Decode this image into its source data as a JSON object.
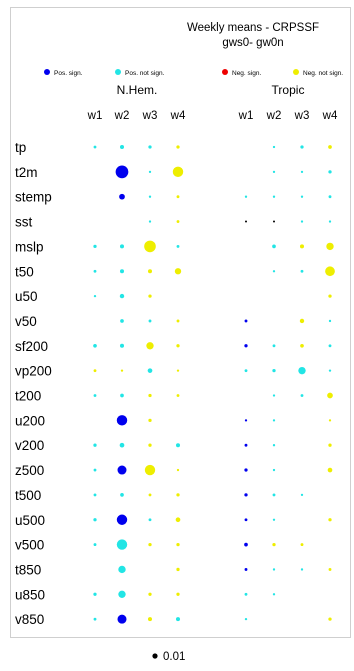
{
  "chart_data": {
    "type": "scatter",
    "title": "Weekly means - CRPSSF",
    "subtitle": "gws0- gw0n",
    "legend": [
      {
        "label": "Pos. sign.",
        "color": "#0000ee"
      },
      {
        "label": "Pos. not sign.",
        "color": "#22e5e5"
      },
      {
        "label": "Neg. sign.",
        "color": "#ee0000"
      },
      {
        "label": "Neg. not sign.",
        "color": "#eeee00"
      }
    ],
    "panels": [
      {
        "name": "N.Hem.",
        "weeks": [
          "w1",
          "w2",
          "w3",
          "w4"
        ]
      },
      {
        "name": "Tropic",
        "weeks": [
          "w1",
          "w2",
          "w3",
          "w4"
        ]
      }
    ],
    "variables": [
      "tp",
      "t2m",
      "stemp",
      "sst",
      "mslp",
      "t50",
      "u50",
      "v50",
      "sf200",
      "vp200",
      "t200",
      "u200",
      "v200",
      "z500",
      "t500",
      "u500",
      "v500",
      "t850",
      "u850",
      "v850"
    ],
    "category_colors": {
      "ps": "#0000ee",
      "pn": "#22e5e5",
      "ns": "#ee0000",
      "nn": "#eeee00",
      "k": "#000000"
    },
    "scale_label": "0.01",
    "scale_value": 0.01,
    "points": [
      {
        "var": "tp",
        "panel": 0,
        "week": 1,
        "cat": "pn",
        "size": 0.003
      },
      {
        "var": "tp",
        "panel": 0,
        "week": 2,
        "cat": "pn",
        "size": 0.006
      },
      {
        "var": "tp",
        "panel": 0,
        "week": 3,
        "cat": "pn",
        "size": 0.004
      },
      {
        "var": "tp",
        "panel": 0,
        "week": 4,
        "cat": "nn",
        "size": 0.004
      },
      {
        "var": "tp",
        "panel": 1,
        "week": 2,
        "cat": "pn",
        "size": 0.002
      },
      {
        "var": "tp",
        "panel": 1,
        "week": 3,
        "cat": "pn",
        "size": 0.004
      },
      {
        "var": "tp",
        "panel": 1,
        "week": 4,
        "cat": "nn",
        "size": 0.005
      },
      {
        "var": "t2m",
        "panel": 0,
        "week": 2,
        "cat": "ps",
        "size": 0.06
      },
      {
        "var": "t2m",
        "panel": 0,
        "week": 3,
        "cat": "pn",
        "size": 0.002
      },
      {
        "var": "t2m",
        "panel": 0,
        "week": 4,
        "cat": "nn",
        "size": 0.04
      },
      {
        "var": "t2m",
        "panel": 1,
        "week": 2,
        "cat": "pn",
        "size": 0.002
      },
      {
        "var": "t2m",
        "panel": 1,
        "week": 3,
        "cat": "pn",
        "size": 0.002
      },
      {
        "var": "t2m",
        "panel": 1,
        "week": 4,
        "cat": "pn",
        "size": 0.004
      },
      {
        "var": "stemp",
        "panel": 0,
        "week": 2,
        "cat": "ps",
        "size": 0.012
      },
      {
        "var": "stemp",
        "panel": 0,
        "week": 3,
        "cat": "pn",
        "size": 0.002
      },
      {
        "var": "stemp",
        "panel": 0,
        "week": 4,
        "cat": "nn",
        "size": 0.003
      },
      {
        "var": "stemp",
        "panel": 1,
        "week": 1,
        "cat": "pn",
        "size": 0.002
      },
      {
        "var": "stemp",
        "panel": 1,
        "week": 2,
        "cat": "pn",
        "size": 0.002
      },
      {
        "var": "stemp",
        "panel": 1,
        "week": 3,
        "cat": "pn",
        "size": 0.002
      },
      {
        "var": "stemp",
        "panel": 1,
        "week": 4,
        "cat": "pn",
        "size": 0.003
      },
      {
        "var": "sst",
        "panel": 0,
        "week": 3,
        "cat": "pn",
        "size": 0.002
      },
      {
        "var": "sst",
        "panel": 0,
        "week": 4,
        "cat": "nn",
        "size": 0.003
      },
      {
        "var": "sst",
        "panel": 1,
        "week": 1,
        "cat": "k",
        "size": 0.001
      },
      {
        "var": "sst",
        "panel": 1,
        "week": 2,
        "cat": "k",
        "size": 0.001
      },
      {
        "var": "sst",
        "panel": 1,
        "week": 3,
        "cat": "pn",
        "size": 0.002
      },
      {
        "var": "sst",
        "panel": 1,
        "week": 4,
        "cat": "pn",
        "size": 0.002
      },
      {
        "var": "mslp",
        "panel": 0,
        "week": 1,
        "cat": "pn",
        "size": 0.004
      },
      {
        "var": "mslp",
        "panel": 0,
        "week": 2,
        "cat": "pn",
        "size": 0.006
      },
      {
        "var": "mslp",
        "panel": 0,
        "week": 3,
        "cat": "nn",
        "size": 0.05
      },
      {
        "var": "mslp",
        "panel": 0,
        "week": 4,
        "cat": "pn",
        "size": 0.003
      },
      {
        "var": "mslp",
        "panel": 1,
        "week": 2,
        "cat": "pn",
        "size": 0.005
      },
      {
        "var": "mslp",
        "panel": 1,
        "week": 3,
        "cat": "nn",
        "size": 0.006
      },
      {
        "var": "mslp",
        "panel": 1,
        "week": 4,
        "cat": "nn",
        "size": 0.02
      },
      {
        "var": "t50",
        "panel": 0,
        "week": 1,
        "cat": "pn",
        "size": 0.003
      },
      {
        "var": "t50",
        "panel": 0,
        "week": 2,
        "cat": "pn",
        "size": 0.006
      },
      {
        "var": "t50",
        "panel": 0,
        "week": 3,
        "cat": "nn",
        "size": 0.006
      },
      {
        "var": "t50",
        "panel": 0,
        "week": 4,
        "cat": "nn",
        "size": 0.015
      },
      {
        "var": "t50",
        "panel": 1,
        "week": 2,
        "cat": "pn",
        "size": 0.002
      },
      {
        "var": "t50",
        "panel": 1,
        "week": 3,
        "cat": "pn",
        "size": 0.003
      },
      {
        "var": "t50",
        "panel": 1,
        "week": 4,
        "cat": "nn",
        "size": 0.035
      },
      {
        "var": "u50",
        "panel": 0,
        "week": 1,
        "cat": "pn",
        "size": 0.002
      },
      {
        "var": "u50",
        "panel": 0,
        "week": 2,
        "cat": "pn",
        "size": 0.007
      },
      {
        "var": "u50",
        "panel": 0,
        "week": 3,
        "cat": "nn",
        "size": 0.004
      },
      {
        "var": "u50",
        "panel": 1,
        "week": 4,
        "cat": "nn",
        "size": 0.004
      },
      {
        "var": "v50",
        "panel": 0,
        "week": 2,
        "cat": "pn",
        "size": 0.005
      },
      {
        "var": "v50",
        "panel": 0,
        "week": 3,
        "cat": "pn",
        "size": 0.003
      },
      {
        "var": "v50",
        "panel": 0,
        "week": 4,
        "cat": "nn",
        "size": 0.003
      },
      {
        "var": "v50",
        "panel": 1,
        "week": 1,
        "cat": "ps",
        "size": 0.003
      },
      {
        "var": "v50",
        "panel": 1,
        "week": 3,
        "cat": "nn",
        "size": 0.007
      },
      {
        "var": "v50",
        "panel": 1,
        "week": 4,
        "cat": "pn",
        "size": 0.002
      },
      {
        "var": "sf200",
        "panel": 0,
        "week": 1,
        "cat": "pn",
        "size": 0.005
      },
      {
        "var": "sf200",
        "panel": 0,
        "week": 2,
        "cat": "pn",
        "size": 0.006
      },
      {
        "var": "sf200",
        "panel": 0,
        "week": 3,
        "cat": "nn",
        "size": 0.02
      },
      {
        "var": "sf200",
        "panel": 0,
        "week": 4,
        "cat": "nn",
        "size": 0.004
      },
      {
        "var": "sf200",
        "panel": 1,
        "week": 1,
        "cat": "ps",
        "size": 0.004
      },
      {
        "var": "sf200",
        "panel": 1,
        "week": 2,
        "cat": "pn",
        "size": 0.003
      },
      {
        "var": "sf200",
        "panel": 1,
        "week": 3,
        "cat": "nn",
        "size": 0.005
      },
      {
        "var": "sf200",
        "panel": 1,
        "week": 4,
        "cat": "pn",
        "size": 0.003
      },
      {
        "var": "vp200",
        "panel": 0,
        "week": 1,
        "cat": "nn",
        "size": 0.003
      },
      {
        "var": "vp200",
        "panel": 0,
        "week": 2,
        "cat": "nn",
        "size": 0.002
      },
      {
        "var": "vp200",
        "panel": 0,
        "week": 3,
        "cat": "pn",
        "size": 0.008
      },
      {
        "var": "vp200",
        "panel": 0,
        "week": 4,
        "cat": "nn",
        "size": 0.002
      },
      {
        "var": "vp200",
        "panel": 1,
        "week": 1,
        "cat": "pn",
        "size": 0.003
      },
      {
        "var": "vp200",
        "panel": 1,
        "week": 2,
        "cat": "pn",
        "size": 0.004
      },
      {
        "var": "vp200",
        "panel": 1,
        "week": 3,
        "cat": "pn",
        "size": 0.02
      },
      {
        "var": "vp200",
        "panel": 1,
        "week": 4,
        "cat": "pn",
        "size": 0.002
      },
      {
        "var": "t200",
        "panel": 0,
        "week": 1,
        "cat": "pn",
        "size": 0.003
      },
      {
        "var": "t200",
        "panel": 0,
        "week": 2,
        "cat": "pn",
        "size": 0.005
      },
      {
        "var": "t200",
        "panel": 0,
        "week": 3,
        "cat": "nn",
        "size": 0.004
      },
      {
        "var": "t200",
        "panel": 0,
        "week": 4,
        "cat": "nn",
        "size": 0.003
      },
      {
        "var": "t200",
        "panel": 1,
        "week": 2,
        "cat": "pn",
        "size": 0.002
      },
      {
        "var": "t200",
        "panel": 1,
        "week": 3,
        "cat": "pn",
        "size": 0.003
      },
      {
        "var": "t200",
        "panel": 1,
        "week": 4,
        "cat": "nn",
        "size": 0.012
      },
      {
        "var": "u200",
        "panel": 0,
        "week": 2,
        "cat": "ps",
        "size": 0.04
      },
      {
        "var": "u200",
        "panel": 0,
        "week": 3,
        "cat": "nn",
        "size": 0.004
      },
      {
        "var": "u200",
        "panel": 1,
        "week": 1,
        "cat": "ps",
        "size": 0.002
      },
      {
        "var": "u200",
        "panel": 1,
        "week": 2,
        "cat": "pn",
        "size": 0.002
      },
      {
        "var": "u200",
        "panel": 1,
        "week": 4,
        "cat": "nn",
        "size": 0.002
      },
      {
        "var": "v200",
        "panel": 0,
        "week": 1,
        "cat": "pn",
        "size": 0.004
      },
      {
        "var": "v200",
        "panel": 0,
        "week": 2,
        "cat": "pn",
        "size": 0.008
      },
      {
        "var": "v200",
        "panel": 0,
        "week": 3,
        "cat": "nn",
        "size": 0.004
      },
      {
        "var": "v200",
        "panel": 0,
        "week": 4,
        "cat": "pn",
        "size": 0.006
      },
      {
        "var": "v200",
        "panel": 1,
        "week": 1,
        "cat": "ps",
        "size": 0.003
      },
      {
        "var": "v200",
        "panel": 1,
        "week": 2,
        "cat": "pn",
        "size": 0.002
      },
      {
        "var": "v200",
        "panel": 1,
        "week": 4,
        "cat": "nn",
        "size": 0.004
      },
      {
        "var": "z500",
        "panel": 0,
        "week": 1,
        "cat": "pn",
        "size": 0.003
      },
      {
        "var": "z500",
        "panel": 0,
        "week": 2,
        "cat": "ps",
        "size": 0.03
      },
      {
        "var": "z500",
        "panel": 0,
        "week": 3,
        "cat": "nn",
        "size": 0.04
      },
      {
        "var": "z500",
        "panel": 0,
        "week": 4,
        "cat": "nn",
        "size": 0.002
      },
      {
        "var": "z500",
        "panel": 1,
        "week": 1,
        "cat": "ps",
        "size": 0.004
      },
      {
        "var": "z500",
        "panel": 1,
        "week": 2,
        "cat": "pn",
        "size": 0.002
      },
      {
        "var": "z500",
        "panel": 1,
        "week": 4,
        "cat": "nn",
        "size": 0.008
      },
      {
        "var": "t500",
        "panel": 0,
        "week": 1,
        "cat": "pn",
        "size": 0.003
      },
      {
        "var": "t500",
        "panel": 0,
        "week": 2,
        "cat": "pn",
        "size": 0.005
      },
      {
        "var": "t500",
        "panel": 0,
        "week": 3,
        "cat": "nn",
        "size": 0.003
      },
      {
        "var": "t500",
        "panel": 0,
        "week": 4,
        "cat": "nn",
        "size": 0.004
      },
      {
        "var": "t500",
        "panel": 1,
        "week": 1,
        "cat": "ps",
        "size": 0.004
      },
      {
        "var": "t500",
        "panel": 1,
        "week": 2,
        "cat": "pn",
        "size": 0.003
      },
      {
        "var": "t500",
        "panel": 1,
        "week": 3,
        "cat": "pn",
        "size": 0.002
      },
      {
        "var": "u500",
        "panel": 0,
        "week": 1,
        "cat": "pn",
        "size": 0.004
      },
      {
        "var": "u500",
        "panel": 0,
        "week": 2,
        "cat": "ps",
        "size": 0.04
      },
      {
        "var": "u500",
        "panel": 0,
        "week": 3,
        "cat": "pn",
        "size": 0.003
      },
      {
        "var": "u500",
        "panel": 0,
        "week": 4,
        "cat": "nn",
        "size": 0.008
      },
      {
        "var": "u500",
        "panel": 1,
        "week": 1,
        "cat": "ps",
        "size": 0.003
      },
      {
        "var": "u500",
        "panel": 1,
        "week": 2,
        "cat": "pn",
        "size": 0.002
      },
      {
        "var": "u500",
        "panel": 1,
        "week": 4,
        "cat": "nn",
        "size": 0.004
      },
      {
        "var": "v500",
        "panel": 0,
        "week": 1,
        "cat": "pn",
        "size": 0.003
      },
      {
        "var": "v500",
        "panel": 0,
        "week": 2,
        "cat": "pn",
        "size": 0.04
      },
      {
        "var": "v500",
        "panel": 0,
        "week": 3,
        "cat": "nn",
        "size": 0.004
      },
      {
        "var": "v500",
        "panel": 0,
        "week": 4,
        "cat": "nn",
        "size": 0.004
      },
      {
        "var": "v500",
        "panel": 1,
        "week": 1,
        "cat": "ps",
        "size": 0.005
      },
      {
        "var": "v500",
        "panel": 1,
        "week": 2,
        "cat": "nn",
        "size": 0.004
      },
      {
        "var": "v500",
        "panel": 1,
        "week": 3,
        "cat": "nn",
        "size": 0.003
      },
      {
        "var": "t850",
        "panel": 0,
        "week": 2,
        "cat": "pn",
        "size": 0.02
      },
      {
        "var": "t850",
        "panel": 0,
        "week": 4,
        "cat": "nn",
        "size": 0.004
      },
      {
        "var": "t850",
        "panel": 1,
        "week": 1,
        "cat": "ps",
        "size": 0.003
      },
      {
        "var": "t850",
        "panel": 1,
        "week": 2,
        "cat": "pn",
        "size": 0.002
      },
      {
        "var": "t850",
        "panel": 1,
        "week": 3,
        "cat": "pn",
        "size": 0.002
      },
      {
        "var": "t850",
        "panel": 1,
        "week": 4,
        "cat": "nn",
        "size": 0.003
      },
      {
        "var": "u850",
        "panel": 0,
        "week": 1,
        "cat": "pn",
        "size": 0.004
      },
      {
        "var": "u850",
        "panel": 0,
        "week": 2,
        "cat": "pn",
        "size": 0.02
      },
      {
        "var": "u850",
        "panel": 0,
        "week": 3,
        "cat": "nn",
        "size": 0.004
      },
      {
        "var": "u850",
        "panel": 0,
        "week": 4,
        "cat": "nn",
        "size": 0.004
      },
      {
        "var": "u850",
        "panel": 1,
        "week": 1,
        "cat": "pn",
        "size": 0.003
      },
      {
        "var": "u850",
        "panel": 1,
        "week": 2,
        "cat": "pn",
        "size": 0.002
      },
      {
        "var": "v850",
        "panel": 0,
        "week": 1,
        "cat": "pn",
        "size": 0.003
      },
      {
        "var": "v850",
        "panel": 0,
        "week": 2,
        "cat": "ps",
        "size": 0.03
      },
      {
        "var": "v850",
        "panel": 0,
        "week": 3,
        "cat": "nn",
        "size": 0.006
      },
      {
        "var": "v850",
        "panel": 0,
        "week": 4,
        "cat": "pn",
        "size": 0.006
      },
      {
        "var": "v850",
        "panel": 1,
        "week": 1,
        "cat": "pn",
        "size": 0.002
      },
      {
        "var": "v850",
        "panel": 1,
        "week": 4,
        "cat": "nn",
        "size": 0.004
      }
    ]
  }
}
